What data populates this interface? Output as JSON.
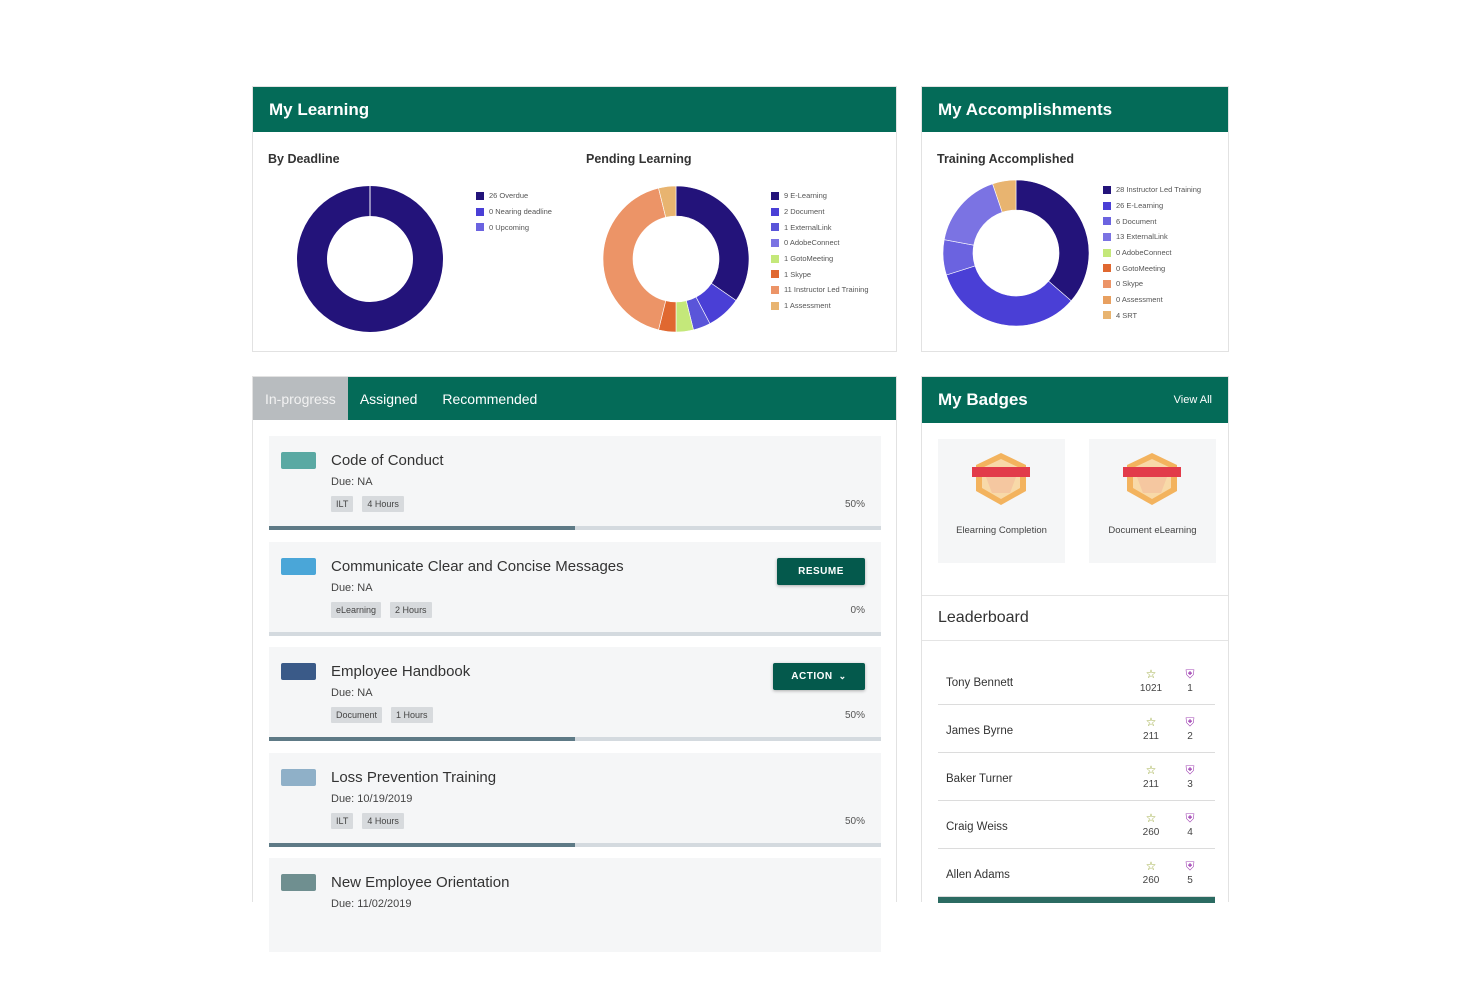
{
  "colors": {
    "header_green": "#046b58",
    "button_green": "#04594c",
    "tab_active_bg": "#b8bcbf"
  },
  "my_learning": {
    "title": "My Learning",
    "by_deadline": {
      "title": "By Deadline",
      "legend": [
        {
          "label": "26 Overdue",
          "color": "#23137a"
        },
        {
          "label": "0 Nearing deadline",
          "color": "#4a3fd6"
        },
        {
          "label": "0 Upcoming",
          "color": "#6b63e0"
        }
      ]
    },
    "pending": {
      "title": "Pending Learning",
      "legend": [
        {
          "label": "9 E-Learning",
          "color": "#23137a"
        },
        {
          "label": "2 Document",
          "color": "#4a3fd6"
        },
        {
          "label": "1 ExternalLink",
          "color": "#5a55d9"
        },
        {
          "label": "0 AdobeConnect",
          "color": "#7b73e3"
        },
        {
          "label": "1 GotoMeeting",
          "color": "#c4e87a"
        },
        {
          "label": "1 Skype",
          "color": "#e06830"
        },
        {
          "label": "11 Instructor Led Training",
          "color": "#ec9467"
        },
        {
          "label": "1 Assessment",
          "color": "#e8b470"
        }
      ]
    }
  },
  "accomplishments": {
    "title": "My Accomplishments",
    "training": {
      "title": "Training Accomplished",
      "legend": [
        {
          "label": "28 Instructor Led Training",
          "color": "#23137a"
        },
        {
          "label": "26 E-Learning",
          "color": "#4a3fd6"
        },
        {
          "label": "6 Document",
          "color": "#6b63e0"
        },
        {
          "label": "13 ExternalLink",
          "color": "#7b73e3"
        },
        {
          "label": "0 AdobeConnect",
          "color": "#c4e87a"
        },
        {
          "label": "0 GotoMeeting",
          "color": "#e06830"
        },
        {
          "label": "0 Skype",
          "color": "#ec9467"
        },
        {
          "label": "0 Assessment",
          "color": "#e8a060"
        },
        {
          "label": "4 SRT",
          "color": "#e8b470"
        }
      ]
    }
  },
  "chart_data": [
    {
      "type": "pie",
      "title": "By Deadline",
      "categories": [
        "Overdue",
        "Nearing deadline",
        "Upcoming"
      ],
      "values": [
        26,
        0,
        0
      ],
      "colors": [
        "#23137a",
        "#4a3fd6",
        "#6b63e0"
      ]
    },
    {
      "type": "pie",
      "title": "Pending Learning",
      "categories": [
        "E-Learning",
        "Document",
        "ExternalLink",
        "AdobeConnect",
        "GotoMeeting",
        "Skype",
        "Instructor Led Training",
        "Assessment"
      ],
      "values": [
        9,
        2,
        1,
        0,
        1,
        1,
        11,
        1
      ],
      "colors": [
        "#23137a",
        "#4a3fd6",
        "#5a55d9",
        "#7b73e3",
        "#c4e87a",
        "#e06830",
        "#ec9467",
        "#e8b470"
      ]
    },
    {
      "type": "pie",
      "title": "Training Accomplished",
      "categories": [
        "Instructor Led Training",
        "E-Learning",
        "Document",
        "ExternalLink",
        "AdobeConnect",
        "GotoMeeting",
        "Skype",
        "Assessment",
        "SRT"
      ],
      "values": [
        28,
        26,
        6,
        13,
        0,
        0,
        0,
        0,
        4
      ],
      "colors": [
        "#23137a",
        "#4a3fd6",
        "#6b63e0",
        "#7b73e3",
        "#c4e87a",
        "#e06830",
        "#ec9467",
        "#e8a060",
        "#e8b470"
      ]
    }
  ],
  "tabs": [
    {
      "label": "In-progress"
    },
    {
      "label": "Assigned"
    },
    {
      "label": "Recommended"
    }
  ],
  "courses": [
    {
      "title": "Code of Conduct",
      "due": "Due: NA",
      "tags": [
        "ILT",
        "4 Hours"
      ],
      "percent": "50%",
      "progress": 0.5,
      "thumb": "#5aa9a3"
    },
    {
      "title": "Communicate Clear and Concise Messages",
      "due": "Due: NA",
      "tags": [
        "eLearning",
        "2 Hours"
      ],
      "percent": "0%",
      "progress": 0,
      "thumb": "#4aa6d8",
      "button": "RESUME"
    },
    {
      "title": "Employee Handbook",
      "due": "Due: NA",
      "tags": [
        "Document",
        "1 Hours"
      ],
      "percent": "50%",
      "progress": 0.5,
      "thumb": "#3a5a88",
      "button": "ACTION"
    },
    {
      "title": "Loss Prevention Training",
      "due": "Due: 10/19/2019",
      "tags": [
        "ILT",
        "4 Hours"
      ],
      "percent": "50%",
      "progress": 0.5,
      "thumb": "#8fb0c8"
    },
    {
      "title": "New Employee Orientation",
      "due": "Due: 11/02/2019",
      "tags": [],
      "percent": "",
      "progress": 0,
      "thumb": "#6f8f90"
    }
  ],
  "badges": {
    "title": "My Badges",
    "view_all": "View All",
    "items": [
      {
        "label": "Elearning Completion"
      },
      {
        "label": "Document eLearning"
      }
    ]
  },
  "leaderboard": {
    "title": "Leaderboard",
    "rows": [
      {
        "name": "Tony Bennett",
        "points": "1021",
        "rank": "1"
      },
      {
        "name": "James Byrne",
        "points": "211",
        "rank": "2"
      },
      {
        "name": "Baker Turner",
        "points": "211",
        "rank": "3"
      },
      {
        "name": "Craig Weiss",
        "points": "260",
        "rank": "4"
      },
      {
        "name": "Allen Adams",
        "points": "260",
        "rank": "5"
      }
    ]
  }
}
